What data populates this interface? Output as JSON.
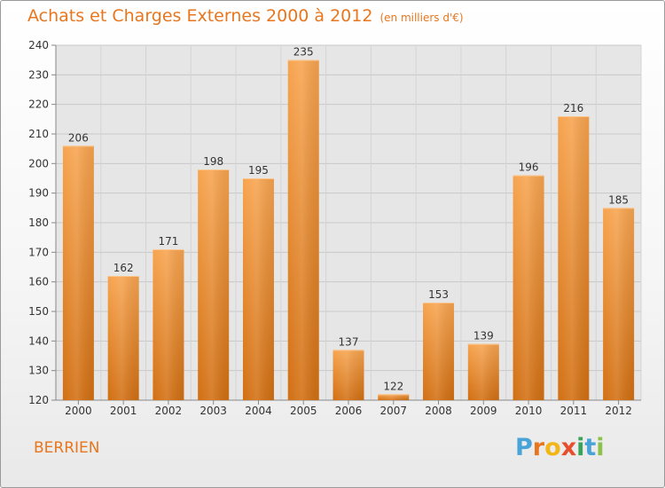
{
  "header": {
    "title": "Achats et Charges Externes 2000 à 2012",
    "subtitle": "(en milliers d'€)"
  },
  "footer": {
    "place": "BERRIEN",
    "logo_letters": [
      "P",
      "r",
      "o",
      "x",
      "i",
      "t",
      "i"
    ]
  },
  "colors": {
    "accent": "#e8761e",
    "bar_top": "#f7a44f",
    "bar_bottom": "#d26f12",
    "plot_bg": "#e6e6e6",
    "grid": "#c9c9c9"
  },
  "chart_data": {
    "type": "bar",
    "title": "Achats et Charges Externes 2000 à 2012",
    "subtitle": "(en milliers d'€)",
    "categories": [
      "2000",
      "2001",
      "2002",
      "2003",
      "2004",
      "2005",
      "2006",
      "2007",
      "2008",
      "2009",
      "2010",
      "2011",
      "2012"
    ],
    "values": [
      206,
      162,
      171,
      198,
      195,
      235,
      137,
      122,
      153,
      139,
      196,
      216,
      185
    ],
    "ylim": [
      120,
      240
    ],
    "yticks": [
      120,
      130,
      140,
      150,
      160,
      170,
      180,
      190,
      200,
      210,
      220,
      230,
      240
    ],
    "grid": true,
    "data_labels": true
  }
}
